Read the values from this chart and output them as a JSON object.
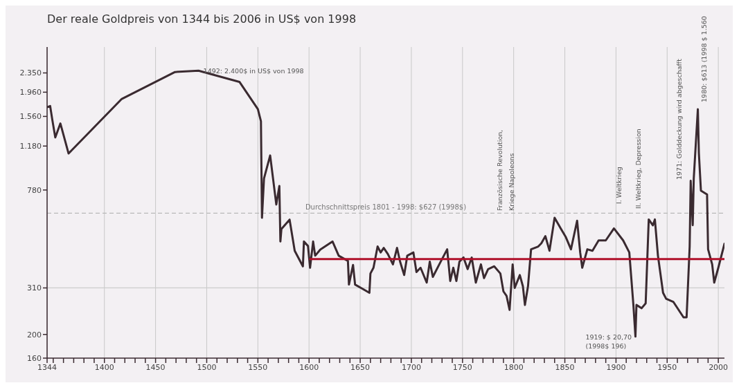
{
  "chart_data": {
    "type": "line",
    "title": "Der reale Goldpreis von 1344 bis 2006 in US$ von 1998",
    "x": [
      1344,
      1347,
      1349,
      1352,
      1357,
      1365,
      1417,
      1469,
      1492,
      1532,
      1550,
      1553,
      1554,
      1556,
      1562,
      1568,
      1571,
      1572,
      1573,
      1581,
      1586,
      1594,
      1595,
      1599,
      1601,
      1604,
      1606,
      1611,
      1623,
      1629,
      1638,
      1639,
      1643,
      1645,
      1652,
      1659,
      1660,
      1663,
      1667,
      1670,
      1673,
      1677,
      1682,
      1686,
      1689,
      1693,
      1696,
      1702,
      1705,
      1709,
      1715,
      1718,
      1721,
      1728,
      1735,
      1738,
      1741,
      1744,
      1747,
      1751,
      1755,
      1759,
      1763,
      1768,
      1771,
      1775,
      1781,
      1787,
      1790,
      1793,
      1796,
      1799,
      1801,
      1806,
      1809,
      1811,
      1814,
      1817,
      1824,
      1827,
      1831,
      1835,
      1840,
      1846,
      1851,
      1856,
      1862,
      1865,
      1867,
      1872,
      1877,
      1883,
      1890,
      1898,
      1907,
      1913,
      1917,
      1919,
      1920,
      1925,
      1929,
      1932,
      1936,
      1938,
      1941,
      1946,
      1949,
      1956,
      1966,
      1969,
      1972,
      1973,
      1975,
      1976,
      1980,
      1981,
      1983,
      1989,
      1990,
      1994,
      1996,
      2000,
      2006
    ],
    "series": [
      {
        "color": "#3a2a30",
        "values": [
          1700,
          1720,
          1520,
          1280,
          1460,
          1100,
          1840,
          2370,
          2400,
          2160,
          1670,
          1490,
          600,
          870,
          1080,
          680,
          810,
          480,
          540,
          590,
          440,
          380,
          480,
          460,
          375,
          480,
          420,
          445,
          480,
          420,
          400,
          320,
          385,
          320,
          308,
          296,
          355,
          375,
          458,
          433,
          452,
          427,
          387,
          452,
          397,
          350,
          420,
          433,
          360,
          375,
          326,
          397,
          344,
          392,
          446,
          331,
          375,
          331,
          397,
          413,
          370,
          413,
          326,
          387,
          340,
          370,
          380,
          355,
          300,
          288,
          252,
          387,
          310,
          350,
          315,
          264,
          315,
          446,
          458,
          472,
          505,
          440,
          600,
          543,
          500,
          446,
          584,
          433,
          375,
          446,
          440,
          485,
          485,
          543,
          485,
          433,
          264,
          196,
          264,
          256,
          268,
          591,
          559,
          591,
          420,
          296,
          280,
          272,
          235,
          235,
          458,
          850,
          560,
          869,
          1670,
          1105,
          775,
          748,
          446,
          387,
          326,
          375,
          470
        ]
      },
      {
        "type": "line",
        "color": "#b0102a",
        "x": [
          1601,
          2006
        ],
        "values": [
          407,
          407
        ]
      }
    ],
    "xlim": [
      1344,
      2006
    ],
    "xticks": [
      {
        "value": 1344,
        "label": "1344"
      },
      {
        "value": 1350,
        "label": null
      },
      {
        "value": 1360,
        "label": null
      },
      {
        "value": 1370,
        "label": null
      },
      {
        "value": 1380,
        "label": null
      },
      {
        "value": 1390,
        "label": null
      },
      1400,
      {
        "value": 1410,
        "label": null
      },
      {
        "value": 1420,
        "label": null
      },
      {
        "value": 1430,
        "label": null
      },
      {
        "value": 1440,
        "label": null
      },
      1450,
      {
        "value": 1460,
        "label": null
      },
      {
        "value": 1470,
        "label": null
      },
      {
        "value": 1480,
        "label": null
      },
      {
        "value": 1490,
        "label": null
      },
      1500,
      {
        "value": 1510,
        "label": null
      },
      {
        "value": 1520,
        "label": null
      },
      {
        "value": 1530,
        "label": null
      },
      {
        "value": 1540,
        "label": null
      },
      1550,
      {
        "value": 1560,
        "label": null
      },
      {
        "value": 1570,
        "label": null
      },
      {
        "value": 1580,
        "label": null
      },
      {
        "value": 1590,
        "label": null
      },
      1600,
      {
        "value": 1610,
        "label": null
      },
      {
        "value": 1620,
        "label": null
      },
      {
        "value": 1630,
        "label": null
      },
      {
        "value": 1640,
        "label": null
      },
      1650,
      {
        "value": 1660,
        "label": null
      },
      {
        "value": 1670,
        "label": null
      },
      {
        "value": 1680,
        "label": null
      },
      {
        "value": 1690,
        "label": null
      },
      1700,
      {
        "value": 1710,
        "label": null
      },
      {
        "value": 1720,
        "label": null
      },
      {
        "value": 1730,
        "label": null
      },
      {
        "value": 1740,
        "label": null
      },
      1750,
      {
        "value": 1760,
        "label": null
      },
      {
        "value": 1770,
        "label": null
      },
      {
        "value": 1780,
        "label": null
      },
      {
        "value": 1790,
        "label": null
      },
      1800,
      {
        "value": 1810,
        "label": null
      },
      {
        "value": 1820,
        "label": null
      },
      {
        "value": 1830,
        "label": null
      },
      {
        "value": 1840,
        "label": null
      },
      1850,
      {
        "value": 1860,
        "label": null
      },
      {
        "value": 1870,
        "label": null
      },
      {
        "value": 1880,
        "label": null
      },
      {
        "value": 1890,
        "label": null
      },
      1900,
      {
        "value": 1910,
        "label": null
      },
      {
        "value": 1920,
        "label": null
      },
      {
        "value": 1930,
        "label": null
      },
      {
        "value": 1940,
        "label": null
      },
      1950,
      {
        "value": 1960,
        "label": null
      },
      {
        "value": 1970,
        "label": null
      },
      {
        "value": 1980,
        "label": null
      },
      {
        "value": 1990,
        "label": null
      },
      2000
    ],
    "ylim": [
      160,
      3000
    ],
    "yticks": [
      160,
      200,
      310,
      780,
      {
        "value": 1180,
        "label": "1.180"
      },
      {
        "value": 1560,
        "label": "1.560"
      },
      {
        "value": 1960,
        "label": "1.960"
      },
      {
        "value": 2350,
        "label": "2.350"
      }
    ],
    "log": true,
    "grid": "x",
    "marker": "none",
    "ref_lines": [
      {
        "axis": "y",
        "value": 310,
        "color": "#cccccc",
        "line_style": "solid"
      },
      {
        "axis": "y",
        "value": 627,
        "label": "Durchschnittspreis 1801 - 1998: $627 (1998$)",
        "color": "#b8b8b8",
        "line_style": "dashed"
      }
    ],
    "annotations": [
      {
        "text": "1492: 2.400$ in US$ von 1998",
        "x": 1494,
        "y": 2400
      },
      "Französische Revolution,",
      "Kriege Napoleons",
      "I. Weltkrieg",
      "II. Weltkrieg, Depression",
      "1971: Golddeckung wird abgeschafft",
      {
        "text": "1980: $613 (1998 $ 1.560",
        "x": 1980,
        "y": 1670
      },
      {
        "text": "1919: $ 20,70",
        "x": 1919,
        "y": 196
      },
      {
        "text": "(1998$ 196)",
        "x": 1919,
        "y": 196
      }
    ]
  }
}
